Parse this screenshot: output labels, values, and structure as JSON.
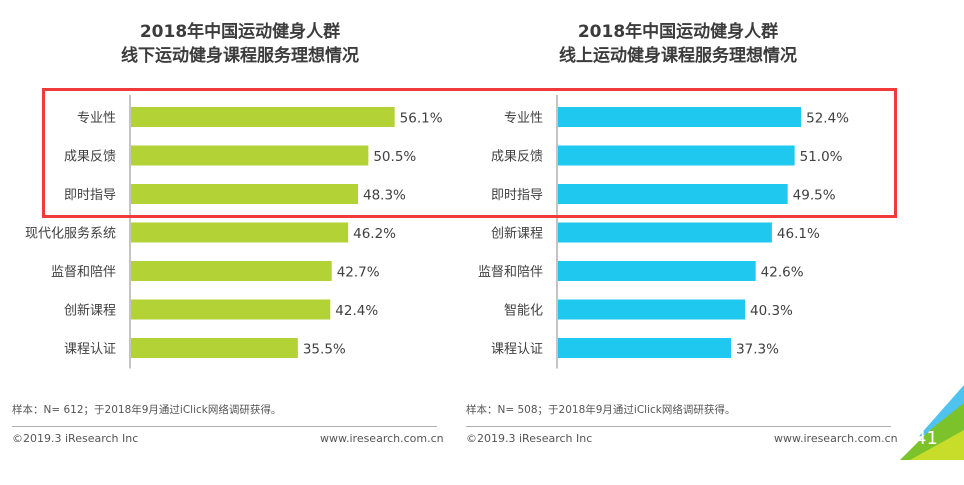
{
  "chart_data": [
    {
      "type": "bar",
      "orientation": "horizontal",
      "title": "2018年中国运动健身人群",
      "subtitle": "线下运动健身课程服务理想情况",
      "categories": [
        "专业性",
        "成果反馈",
        "即时指导",
        "现代化服务系统",
        "监督和陪伴",
        "创新课程",
        "课程认证"
      ],
      "values": [
        56.1,
        50.5,
        48.3,
        46.2,
        42.7,
        42.4,
        35.5
      ],
      "value_labels": [
        "56.1%",
        "50.5%",
        "48.3%",
        "46.2%",
        "42.7%",
        "42.4%",
        "35.5%"
      ],
      "unit": "%",
      "color": "#b2d235",
      "xlabel": "",
      "ylabel": "",
      "grid": false,
      "legend": "none",
      "note": "样本：N= 612；于2018年9月通过iClick网络调研获得。"
    },
    {
      "type": "bar",
      "orientation": "horizontal",
      "title": "2018年中国运动健身人群",
      "subtitle": "线上运动健身课程服务理想情况",
      "categories": [
        "专业性",
        "成果反馈",
        "即时指导",
        "创新课程",
        "监督和陪伴",
        "智能化",
        "课程认证"
      ],
      "values": [
        52.4,
        51.0,
        49.5,
        46.1,
        42.6,
        40.3,
        37.3
      ],
      "value_labels": [
        "52.4%",
        "51.0%",
        "49.5%",
        "46.1%",
        "42.6%",
        "40.3%",
        "37.3%"
      ],
      "unit": "%",
      "color": "#1ec8ef",
      "xlabel": "",
      "ylabel": "",
      "grid": false,
      "legend": "none",
      "note": "样本：N= 508；于2018年9月通过iClick网络调研获得。"
    }
  ],
  "highlight": {
    "description": "top three items highlighted",
    "color": "#f23a3a"
  },
  "footer": {
    "copyright": "©2019.3  iResearch Inc",
    "website": "www.iresearch.com.cn",
    "page_number": "41"
  }
}
